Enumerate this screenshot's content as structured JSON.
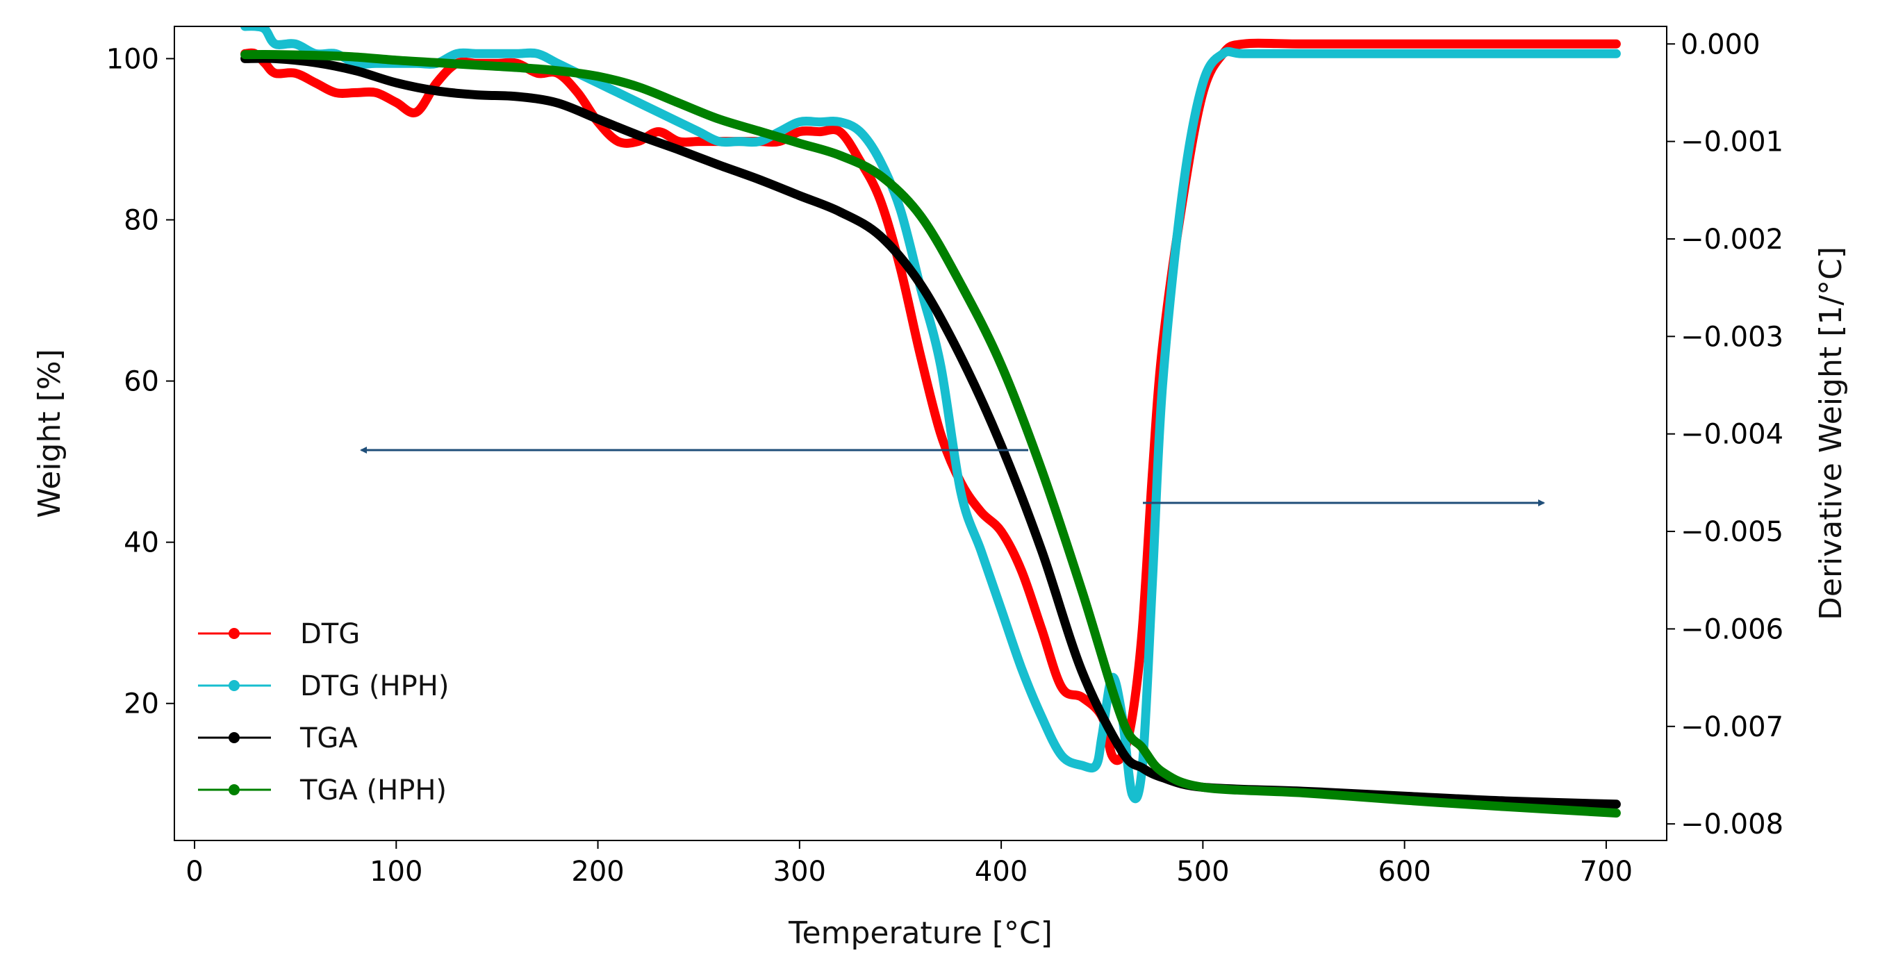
{
  "chart_data": {
    "type": "line",
    "title": "",
    "xlabel": "Temperature [°C]",
    "ylabel_left": "Weight [%]",
    "ylabel_right": "Derivative Weight [1/°C]",
    "xlim": [
      -10,
      730
    ],
    "ylim_left": [
      3,
      104
    ],
    "ylim_right": [
      -0.00817,
      0.00018
    ],
    "xticks": [
      0,
      100,
      200,
      300,
      400,
      500,
      600,
      700
    ],
    "xtick_labels": [
      "0",
      "100",
      "200",
      "300",
      "400",
      "500",
      "600",
      "700"
    ],
    "yticks_left": [
      20,
      40,
      60,
      80,
      100
    ],
    "ytick_labels_left": [
      "20",
      "40",
      "60",
      "80",
      "100"
    ],
    "yticks_right": [
      0.0,
      -0.001,
      -0.002,
      -0.003,
      -0.004,
      -0.005,
      -0.006,
      -0.007,
      -0.008
    ],
    "ytick_labels_right": [
      "0.000",
      "−0.001",
      "−0.002",
      "−0.003",
      "−0.004",
      "−0.005",
      "−0.006",
      "−0.007",
      "−0.008"
    ],
    "grid": false,
    "legend_position": "bottom-left",
    "series": [
      {
        "name": "DTG",
        "axis": "right",
        "color": "#ff0000",
        "x": [
          25,
          30,
          35,
          40,
          50,
          60,
          70,
          80,
          90,
          100,
          110,
          120,
          130,
          140,
          150,
          160,
          170,
          180,
          190,
          200,
          210,
          220,
          230,
          240,
          250,
          260,
          270,
          280,
          290,
          300,
          310,
          320,
          330,
          340,
          350,
          360,
          370,
          380,
          390,
          400,
          410,
          420,
          430,
          440,
          450,
          455,
          460,
          465,
          470,
          475,
          480,
          490,
          500,
          510,
          520,
          550,
          600,
          650,
          705
        ],
        "y": [
          -0.0001,
          -0.0001,
          -0.0002,
          -0.0003,
          -0.0003,
          -0.0004,
          -0.0005,
          -0.0005,
          -0.0005,
          -0.0006,
          -0.0007,
          -0.0004,
          -0.0002,
          -0.0002,
          -0.0002,
          -0.0002,
          -0.0003,
          -0.0003,
          -0.0005,
          -0.0008,
          -0.001,
          -0.001,
          -0.0009,
          -0.001,
          -0.001,
          -0.001,
          -0.001,
          -0.001,
          -0.001,
          -0.0009,
          -0.0009,
          -0.0009,
          -0.0012,
          -0.0016,
          -0.0023,
          -0.0032,
          -0.004,
          -0.0045,
          -0.0048,
          -0.005,
          -0.0054,
          -0.006,
          -0.0066,
          -0.0067,
          -0.0069,
          -0.0073,
          -0.0073,
          -0.0069,
          -0.006,
          -0.0044,
          -0.0031,
          -0.0016,
          -0.0005,
          -0.0001,
          0.0,
          0.0,
          0.0,
          0.0,
          0.0
        ]
      },
      {
        "name": "DTG (HPH)",
        "axis": "right",
        "color": "#17becf",
        "x": [
          25,
          30,
          35,
          40,
          50,
          60,
          70,
          80,
          90,
          100,
          110,
          120,
          130,
          140,
          150,
          160,
          170,
          180,
          190,
          200,
          210,
          220,
          230,
          240,
          250,
          260,
          270,
          280,
          290,
          300,
          310,
          320,
          330,
          340,
          350,
          360,
          370,
          380,
          390,
          400,
          410,
          420,
          430,
          440,
          447,
          450,
          455,
          460,
          465,
          470,
          475,
          480,
          490,
          500,
          510,
          520,
          550,
          600,
          650,
          705
        ],
        "y": [
          0.00018,
          0.00018,
          0.00015,
          0.0,
          0.0,
          -0.0001,
          -0.0001,
          -0.0002,
          -0.0002,
          -0.0002,
          -0.0002,
          -0.0002,
          -0.0001,
          -0.0001,
          -0.0001,
          -0.0001,
          -0.0001,
          -0.0002,
          -0.0003,
          -0.0004,
          -0.0005,
          -0.0006,
          -0.0007,
          -0.0008,
          -0.0009,
          -0.001,
          -0.001,
          -0.001,
          -0.0009,
          -0.0008,
          -0.0008,
          -0.0008,
          -0.0009,
          -0.0012,
          -0.0017,
          -0.0025,
          -0.0033,
          -0.0046,
          -0.0052,
          -0.0058,
          -0.0064,
          -0.0069,
          -0.0073,
          -0.0074,
          -0.0074,
          -0.0071,
          -0.0065,
          -0.0069,
          -0.0077,
          -0.0074,
          -0.0055,
          -0.0035,
          -0.0015,
          -0.0004,
          -0.0001,
          -0.0001,
          -0.0001,
          -0.0001,
          -0.0001,
          -0.0001
        ]
      },
      {
        "name": "TGA",
        "axis": "left",
        "color": "#000000",
        "x": [
          25,
          40,
          60,
          80,
          100,
          120,
          140,
          160,
          180,
          200,
          220,
          240,
          260,
          280,
          300,
          320,
          340,
          360,
          380,
          400,
          420,
          440,
          460,
          470,
          480,
          500,
          550,
          600,
          650,
          705
        ],
        "y": [
          100,
          100,
          99.5,
          98.5,
          97,
          96,
          95.5,
          95.3,
          94.5,
          92.5,
          90.5,
          88.7,
          86.8,
          85,
          83,
          81,
          78,
          72,
          63,
          52,
          39,
          24,
          14,
          12,
          10.8,
          9.6,
          9.1,
          8.5,
          7.9,
          7.5
        ]
      },
      {
        "name": "TGA (HPH)",
        "axis": "left",
        "color": "#008000",
        "x": [
          25,
          40,
          60,
          80,
          100,
          120,
          140,
          160,
          180,
          200,
          220,
          240,
          260,
          280,
          300,
          320,
          340,
          360,
          380,
          400,
          420,
          440,
          460,
          470,
          480,
          500,
          550,
          600,
          650,
          705
        ],
        "y": [
          100.5,
          100.5,
          100.4,
          100.2,
          99.8,
          99.5,
          99.2,
          98.9,
          98.5,
          97.8,
          96.5,
          94.5,
          92.5,
          91,
          89.5,
          88,
          85.5,
          80.5,
          72,
          62,
          49,
          34,
          18,
          14.5,
          11.5,
          9.6,
          8.9,
          8.0,
          7.2,
          6.4
        ]
      }
    ]
  }
}
